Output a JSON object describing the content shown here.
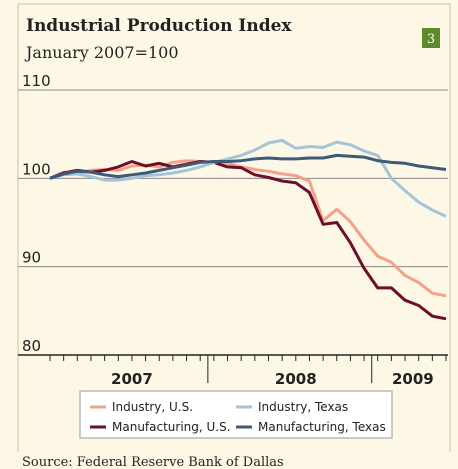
{
  "chart_data": {
    "type": "line",
    "title": "Industrial Production Index",
    "subtitle": "January 2007=100",
    "badge": "3",
    "source": "Source: Federal Reserve Bank of Dallas",
    "categories": [
      null,
      null,
      null,
      null,
      null,
      null,
      null,
      null,
      null,
      null,
      null,
      null,
      null,
      null,
      null,
      null,
      null,
      null,
      null,
      null,
      null,
      null,
      null,
      null,
      null,
      null,
      null,
      null,
      null,
      null
    ],
    "year_labels": [
      {
        "label": "2007",
        "start": 0,
        "end": 12
      },
      {
        "label": "2008",
        "start": 12,
        "end": 24
      },
      {
        "label": "2009",
        "start": 24,
        "end": 30
      }
    ],
    "ylim": [
      80,
      110
    ],
    "yticks": [
      80,
      90,
      100,
      110
    ],
    "grid": true,
    "series": [
      {
        "name": "Industry, U.S.",
        "color": "#f4a08a",
        "values": [
          100,
          100.7,
          100.6,
          100.9,
          101,
          100.9,
          101.4,
          101.5,
          101.3,
          101.8,
          102,
          101.9,
          101.8,
          101.7,
          101.3,
          101,
          100.8,
          100.5,
          100.3,
          99.7,
          95.2,
          96.5,
          95.1,
          93,
          91.2,
          90.5,
          89,
          88.2,
          87,
          86.7
        ]
      },
      {
        "name": "Manufacturing, U.S.",
        "color": "#6b0f2a",
        "values": [
          100,
          100.6,
          100.9,
          100.7,
          100.9,
          101.3,
          101.9,
          101.4,
          101.7,
          101.3,
          101.6,
          101.9,
          101.8,
          101.3,
          101.2,
          100.4,
          100.1,
          99.7,
          99.5,
          98.4,
          94.8,
          95,
          92.7,
          89.8,
          87.6,
          87.6,
          86.2,
          85.6,
          84.4,
          84.1
        ]
      },
      {
        "name": "Industry, Texas",
        "color": "#a6c4d8",
        "values": [
          100,
          100.4,
          100.5,
          100.2,
          99.8,
          99.8,
          100,
          100.3,
          100.4,
          100.6,
          100.9,
          101.3,
          101.8,
          102.2,
          102.6,
          103.2,
          104,
          104.3,
          103.4,
          103.6,
          103.5,
          104.1,
          103.8,
          103.1,
          102.6,
          100,
          98.6,
          97.3,
          96.4,
          95.7
        ]
      },
      {
        "name": "Manufacturing, Texas",
        "color": "#3d5a78",
        "values": [
          100,
          100.5,
          100.8,
          100.7,
          100.4,
          100.2,
          100.4,
          100.6,
          100.9,
          101.2,
          101.5,
          101.8,
          101.9,
          101.9,
          102,
          102.2,
          102.3,
          102.2,
          102.2,
          102.3,
          102.3,
          102.6,
          102.5,
          102.4,
          102,
          101.8,
          101.7,
          101.4,
          101.2,
          101
        ]
      }
    ]
  }
}
